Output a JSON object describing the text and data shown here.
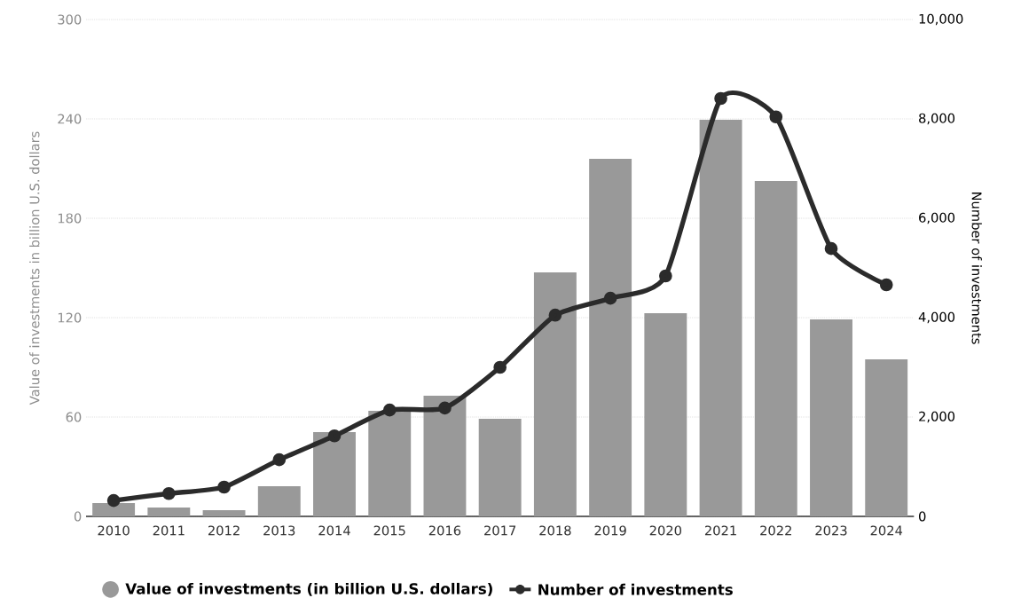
{
  "chart_data": {
    "type": "bar",
    "categories": [
      "2010",
      "2011",
      "2012",
      "2013",
      "2014",
      "2015",
      "2016",
      "2017",
      "2018",
      "2019",
      "2020",
      "2021",
      "2022",
      "2023",
      "2024"
    ],
    "series": [
      {
        "name": "Value of investments (in billion U.S. dollars)",
        "color": "#999999",
        "values": [
          8,
          5.4,
          3.7,
          18.2,
          50.9,
          63.7,
          72.8,
          58.9,
          147.3,
          215.9,
          122.7,
          239.4,
          202.5,
          118.9,
          94.8
        ]
      },
      {
        "name": "Number of investments",
        "type": "line",
        "axis": "y2",
        "color": "#2b2b2b",
        "values": [
          320,
          460,
          590,
          1140,
          1620,
          2140,
          2180,
          3000,
          4050,
          4390,
          4840,
          8410,
          8040,
          5390,
          4660
        ]
      }
    ],
    "ylabel": "Value of investments in billion U.S. dollars",
    "y2label": "Number of investments",
    "ylim": [
      0,
      300
    ],
    "yticks": [
      0,
      60,
      120,
      180,
      240,
      300
    ],
    "y2lim": [
      0,
      10000
    ],
    "y2ticks": [
      0,
      {
        "value": 2000,
        "label": "2,000"
      },
      {
        "value": 4000,
        "label": "4,000"
      },
      {
        "value": 6000,
        "label": "6,000"
      },
      {
        "value": 8000,
        "label": "8,000"
      },
      {
        "value": 10000,
        "label": "10,000"
      }
    ],
    "grid": "y",
    "legend": "bottom",
    "marker": "circle",
    "line_style": "solid"
  }
}
